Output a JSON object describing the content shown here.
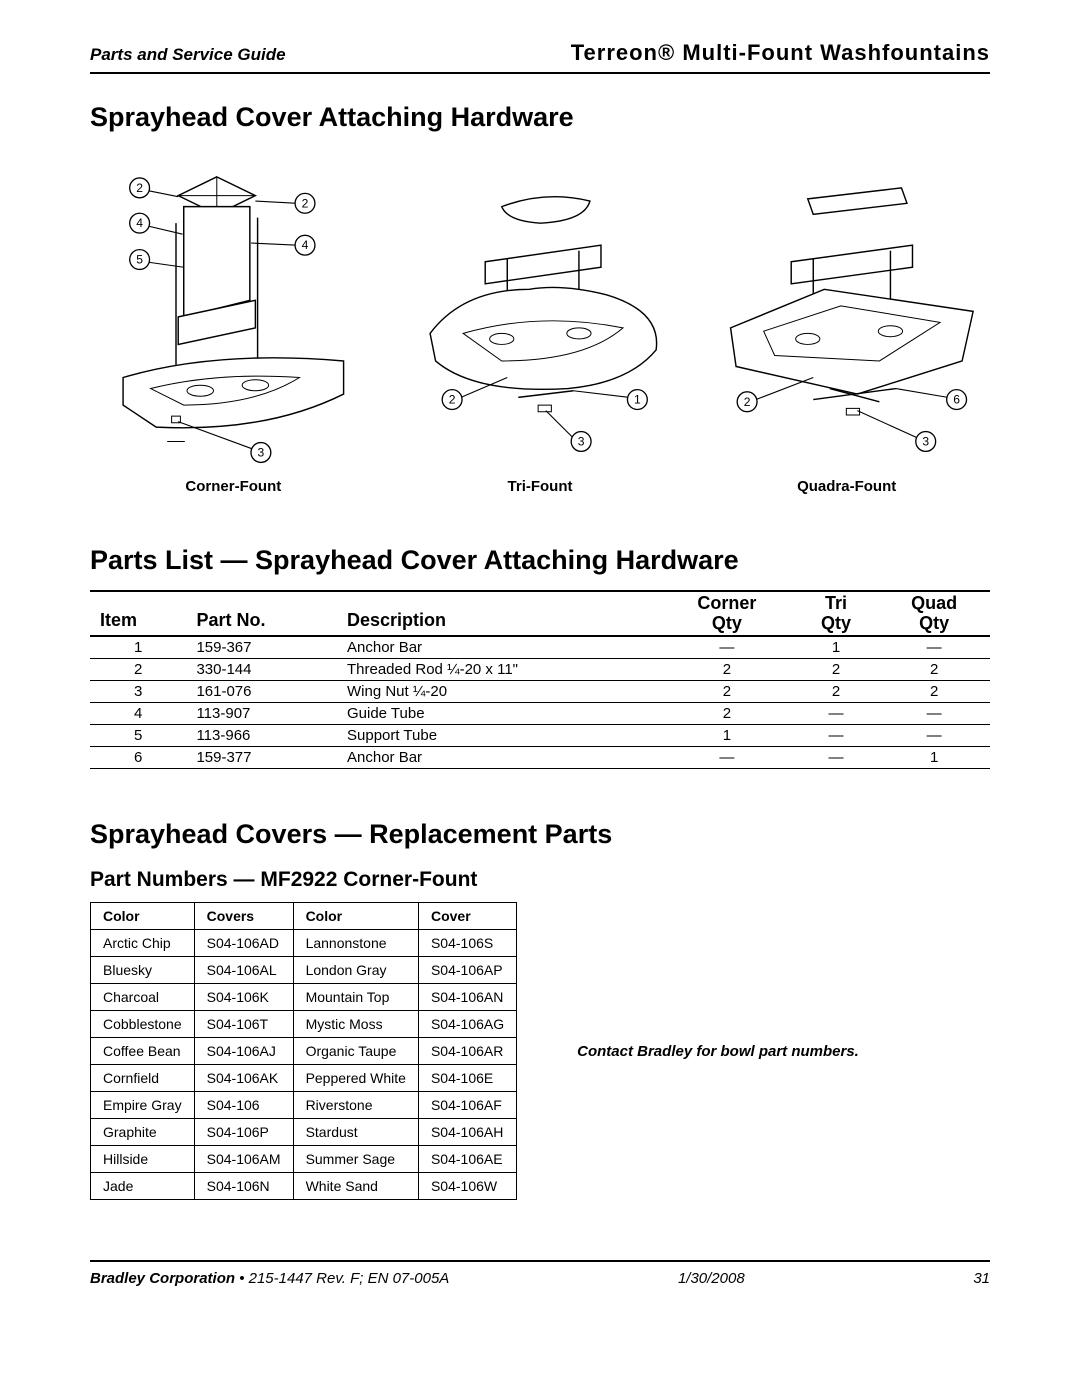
{
  "header": {
    "left": "Parts and Service Guide",
    "right": "Terreon® Multi-Fount Washfountains"
  },
  "h1": "Sprayhead Cover Attaching Hardware",
  "diagrams": {
    "corner": {
      "label": "Corner-Fount",
      "callouts": [
        2,
        2,
        4,
        4,
        5,
        2,
        3
      ]
    },
    "tri": {
      "label": "Tri-Fount",
      "callouts": [
        2,
        1,
        3
      ]
    },
    "quadra": {
      "label": "Quadra-Fount",
      "callouts": [
        2,
        6,
        3
      ]
    }
  },
  "parts_heading": "Parts List — Sprayhead Cover Attaching Hardware",
  "parts_table": {
    "columns": [
      "Item",
      "Part No.",
      "Description",
      "Corner Qty",
      "Tri Qty",
      "Quad Qty"
    ],
    "header_top": [
      "",
      "",
      "",
      "Corner",
      "Tri",
      "Quad"
    ],
    "header_bot": [
      "Item",
      "Part No.",
      "Description",
      "Qty",
      "Qty",
      "Qty"
    ],
    "rows": [
      [
        "1",
        "159-367",
        "Anchor Bar",
        "—",
        "1",
        "—"
      ],
      [
        "2",
        "330-144",
        "Threaded Rod ¼-20 x 11\"",
        "2",
        "2",
        "2"
      ],
      [
        "3",
        "161-076",
        "Wing Nut ¼-20",
        "2",
        "2",
        "2"
      ],
      [
        "4",
        "113-907",
        "Guide Tube",
        "2",
        "—",
        "—"
      ],
      [
        "5",
        "113-966",
        "Support Tube",
        "1",
        "—",
        "—"
      ],
      [
        "6",
        "159-377",
        "Anchor Bar",
        "—",
        "—",
        "1"
      ]
    ]
  },
  "covers_heading": "Sprayhead Covers — Replacement Parts",
  "covers_sub": "Part Numbers — MF2922 Corner-Fount",
  "color_table": {
    "headers": [
      "Color",
      "Covers",
      "Color",
      "Cover"
    ],
    "rows": [
      [
        "Arctic Chip",
        "S04-106AD",
        "Lannonstone",
        "S04-106S"
      ],
      [
        "Bluesky",
        "S04-106AL",
        "London Gray",
        "S04-106AP"
      ],
      [
        "Charcoal",
        "S04-106K",
        "Mountain Top",
        "S04-106AN"
      ],
      [
        "Cobblestone",
        "S04-106T",
        "Mystic Moss",
        "S04-106AG"
      ],
      [
        "Coffee Bean",
        "S04-106AJ",
        "Organic Taupe",
        "S04-106AR"
      ],
      [
        "Cornfield",
        "S04-106AK",
        "Peppered White",
        "S04-106E"
      ],
      [
        "Empire Gray",
        "S04-106",
        "Riverstone",
        "S04-106AF"
      ],
      [
        "Graphite",
        "S04-106P",
        "Stardust",
        "S04-106AH"
      ],
      [
        "Hillside",
        "S04-106AM",
        "Summer Sage",
        "S04-106AE"
      ],
      [
        "Jade",
        "S04-106N",
        "White Sand",
        "S04-106W"
      ]
    ]
  },
  "contact_note": "Contact Bradley for bowl part numbers.",
  "footer": {
    "company": "Bradley Corporation",
    "doc": " • 215-1447 Rev. F; EN 07-005A",
    "date": "1/30/2008",
    "page": "31"
  }
}
